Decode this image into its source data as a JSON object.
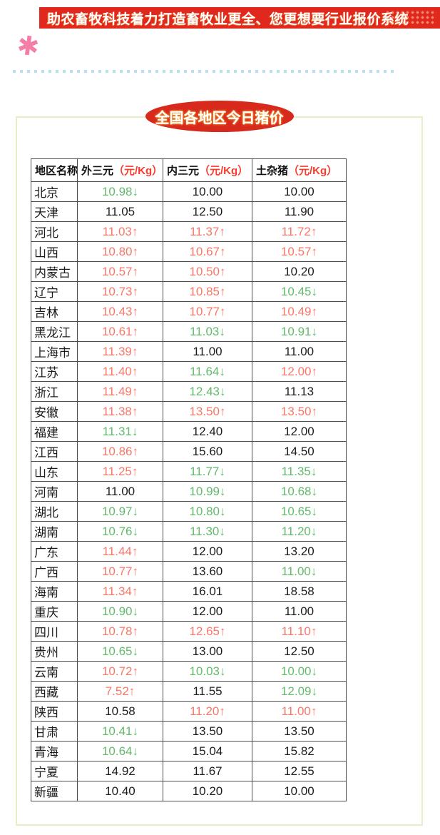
{
  "banner": {
    "text": "助农畜牧科技着力打造畜牧业更全、您更想要行业报价系统"
  },
  "decor": {
    "star_glyph": "✱"
  },
  "title": {
    "text": "全国各地区今日猪价"
  },
  "arrows": {
    "up": "↑",
    "down": "↓"
  },
  "colors": {
    "banner_red": "#e0281d",
    "title_ellipse_red": "#d7291c",
    "header_unit_red": "#fb3a2c",
    "price_up_red": "#fa7667",
    "price_down_green": "#63ba6c",
    "panel_border": "#e9efc5",
    "dotted_divider_blue": "#b7e0ef",
    "star_pink": "#f47ea8",
    "table_border_gray": "#4c4c4c"
  },
  "table": {
    "headers": [
      {
        "label": "地区名称",
        "unit": ""
      },
      {
        "label": "外三元",
        "unit": "（元/Kg）"
      },
      {
        "label": "内三元",
        "unit": "（元/Kg）"
      },
      {
        "label": "土杂猪",
        "unit": "（元/Kg）"
      }
    ],
    "rows": [
      {
        "region": "北京",
        "cells": [
          {
            "v": "10.98",
            "t": "down"
          },
          {
            "v": "10.00",
            "t": "flat"
          },
          {
            "v": "10.00",
            "t": "flat"
          }
        ]
      },
      {
        "region": "天津",
        "cells": [
          {
            "v": "11.05",
            "t": "flat"
          },
          {
            "v": "12.50",
            "t": "flat"
          },
          {
            "v": "11.90",
            "t": "flat"
          }
        ]
      },
      {
        "region": "河北",
        "cells": [
          {
            "v": "11.03",
            "t": "up"
          },
          {
            "v": "11.37",
            "t": "up"
          },
          {
            "v": "11.72",
            "t": "up"
          }
        ]
      },
      {
        "region": "山西",
        "cells": [
          {
            "v": "10.80",
            "t": "up"
          },
          {
            "v": "10.67",
            "t": "up"
          },
          {
            "v": "10.57",
            "t": "up"
          }
        ]
      },
      {
        "region": "内蒙古",
        "cells": [
          {
            "v": "10.57",
            "t": "up"
          },
          {
            "v": "10.50",
            "t": "up"
          },
          {
            "v": "10.20",
            "t": "flat"
          }
        ]
      },
      {
        "region": "辽宁",
        "cells": [
          {
            "v": "10.73",
            "t": "up"
          },
          {
            "v": "10.85",
            "t": "up"
          },
          {
            "v": "10.45",
            "t": "down"
          }
        ]
      },
      {
        "region": "吉林",
        "cells": [
          {
            "v": "10.43",
            "t": "up"
          },
          {
            "v": "10.77",
            "t": "up"
          },
          {
            "v": "10.49",
            "t": "up"
          }
        ]
      },
      {
        "region": "黑龙江",
        "cells": [
          {
            "v": "10.61",
            "t": "up"
          },
          {
            "v": "11.03",
            "t": "down"
          },
          {
            "v": "10.91",
            "t": "down"
          }
        ]
      },
      {
        "region": "上海市",
        "cells": [
          {
            "v": "11.39",
            "t": "up"
          },
          {
            "v": "11.00",
            "t": "flat"
          },
          {
            "v": "11.00",
            "t": "flat"
          }
        ]
      },
      {
        "region": "江苏",
        "cells": [
          {
            "v": "11.40",
            "t": "up"
          },
          {
            "v": "11.64",
            "t": "down"
          },
          {
            "v": "12.00",
            "t": "up"
          }
        ]
      },
      {
        "region": "浙江",
        "cells": [
          {
            "v": "11.49",
            "t": "up"
          },
          {
            "v": "12.43",
            "t": "down"
          },
          {
            "v": "11.13",
            "t": "flat"
          }
        ]
      },
      {
        "region": "安徽",
        "cells": [
          {
            "v": "11.38",
            "t": "up"
          },
          {
            "v": "13.50",
            "t": "up"
          },
          {
            "v": "13.50",
            "t": "up"
          }
        ]
      },
      {
        "region": "福建",
        "cells": [
          {
            "v": "11.31",
            "t": "down"
          },
          {
            "v": "12.40",
            "t": "flat"
          },
          {
            "v": "12.00",
            "t": "flat"
          }
        ]
      },
      {
        "region": "江西",
        "cells": [
          {
            "v": "10.86",
            "t": "up"
          },
          {
            "v": "15.60",
            "t": "flat"
          },
          {
            "v": "14.50",
            "t": "flat"
          }
        ]
      },
      {
        "region": "山东",
        "cells": [
          {
            "v": "11.25",
            "t": "up"
          },
          {
            "v": "11.77",
            "t": "down"
          },
          {
            "v": "11.35",
            "t": "down"
          }
        ]
      },
      {
        "region": "河南",
        "cells": [
          {
            "v": "11.00",
            "t": "flat"
          },
          {
            "v": "10.99",
            "t": "down"
          },
          {
            "v": "10.68",
            "t": "down"
          }
        ]
      },
      {
        "region": "湖北",
        "cells": [
          {
            "v": "10.97",
            "t": "down"
          },
          {
            "v": "10.80",
            "t": "down"
          },
          {
            "v": "10.65",
            "t": "down"
          }
        ]
      },
      {
        "region": "湖南",
        "cells": [
          {
            "v": "10.76",
            "t": "down"
          },
          {
            "v": "11.30",
            "t": "down"
          },
          {
            "v": "11.20",
            "t": "down"
          }
        ]
      },
      {
        "region": "广东",
        "cells": [
          {
            "v": "11.44",
            "t": "up"
          },
          {
            "v": "12.00",
            "t": "flat"
          },
          {
            "v": "13.20",
            "t": "flat"
          }
        ]
      },
      {
        "region": "广西",
        "cells": [
          {
            "v": "10.77",
            "t": "up"
          },
          {
            "v": "13.60",
            "t": "flat"
          },
          {
            "v": "11.00",
            "t": "down"
          }
        ]
      },
      {
        "region": "海南",
        "cells": [
          {
            "v": "11.34",
            "t": "up"
          },
          {
            "v": "16.01",
            "t": "flat"
          },
          {
            "v": "18.58",
            "t": "flat"
          }
        ]
      },
      {
        "region": "重庆",
        "cells": [
          {
            "v": "10.90",
            "t": "down"
          },
          {
            "v": "12.00",
            "t": "flat"
          },
          {
            "v": "11.00",
            "t": "flat"
          }
        ]
      },
      {
        "region": "四川",
        "cells": [
          {
            "v": "10.78",
            "t": "up"
          },
          {
            "v": "12.65",
            "t": "up"
          },
          {
            "v": "11.10",
            "t": "up"
          }
        ]
      },
      {
        "region": "贵州",
        "cells": [
          {
            "v": "10.65",
            "t": "down"
          },
          {
            "v": "13.00",
            "t": "flat"
          },
          {
            "v": "12.50",
            "t": "flat"
          }
        ]
      },
      {
        "region": "云南",
        "cells": [
          {
            "v": "10.72",
            "t": "up"
          },
          {
            "v": "10.03",
            "t": "down"
          },
          {
            "v": "10.00",
            "t": "down"
          }
        ]
      },
      {
        "region": "西藏",
        "cells": [
          {
            "v": "7.52",
            "t": "up"
          },
          {
            "v": "11.55",
            "t": "flat"
          },
          {
            "v": "12.09",
            "t": "down"
          }
        ]
      },
      {
        "region": "陕西",
        "cells": [
          {
            "v": "10.58",
            "t": "flat"
          },
          {
            "v": "11.20",
            "t": "up"
          },
          {
            "v": "11.00",
            "t": "up"
          }
        ]
      },
      {
        "region": "甘肃",
        "cells": [
          {
            "v": "10.41",
            "t": "down"
          },
          {
            "v": "13.50",
            "t": "flat"
          },
          {
            "v": "13.50",
            "t": "flat"
          }
        ]
      },
      {
        "region": "青海",
        "cells": [
          {
            "v": "10.64",
            "t": "down"
          },
          {
            "v": "15.04",
            "t": "flat"
          },
          {
            "v": "15.82",
            "t": "flat"
          }
        ]
      },
      {
        "region": "宁夏",
        "cells": [
          {
            "v": "14.92",
            "t": "flat"
          },
          {
            "v": "11.67",
            "t": "flat"
          },
          {
            "v": "12.55",
            "t": "flat"
          }
        ]
      },
      {
        "region": "新疆",
        "cells": [
          {
            "v": "10.40",
            "t": "flat"
          },
          {
            "v": "10.20",
            "t": "flat"
          },
          {
            "v": "10.00",
            "t": "flat"
          }
        ]
      }
    ]
  }
}
